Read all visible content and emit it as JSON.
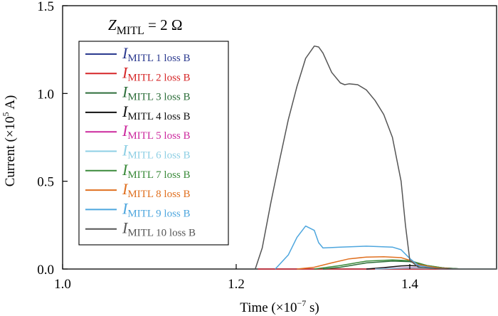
{
  "chart_data": {
    "type": "line",
    "annotation": {
      "var": "Z",
      "sub": "MITL",
      "rest": " = 2 Ω"
    },
    "xlabel": {
      "text": "Time (×10",
      "sup": "−7",
      "tail": " s)"
    },
    "ylabel": {
      "text": "Current (×10",
      "sup": "5",
      "tail": " A)"
    },
    "xlim": [
      1.0,
      1.5
    ],
    "ylim": [
      0.0,
      1.5
    ],
    "xticks": [
      {
        "value": 1.0,
        "label": "1.0"
      },
      {
        "value": 1.2,
        "label": "1.2"
      },
      {
        "value": 1.4,
        "label": "1.4"
      }
    ],
    "yticks": [
      {
        "value": 0.0,
        "label": "0.0"
      },
      {
        "value": 0.5,
        "label": "0.5"
      },
      {
        "value": 1.0,
        "label": "1.0"
      },
      {
        "value": 1.5,
        "label": "1.5"
      }
    ],
    "grid": false,
    "legend_position": "upper-left",
    "series": [
      {
        "name_var": "I",
        "name_sub": "MITL 1 loss B",
        "color": "#2b3a8f",
        "x": [
          1.225,
          1.3,
          1.36,
          1.4,
          1.44,
          1.5
        ],
        "y": [
          0,
          0,
          0,
          0,
          0,
          0
        ]
      },
      {
        "name_var": "I",
        "name_sub": "MITL 2 loss B",
        "color": "#d62728",
        "x": [
          1.225,
          1.3,
          1.36,
          1.4,
          1.44,
          1.5
        ],
        "y": [
          0,
          0,
          0,
          0,
          0,
          0
        ]
      },
      {
        "name_var": "I",
        "name_sub": "MITL 3 loss B",
        "color": "#2d6e3a",
        "x": [
          1.3,
          1.32,
          1.35,
          1.38,
          1.4,
          1.42,
          1.44,
          1.46,
          1.5
        ],
        "y": [
          0,
          0.01,
          0.035,
          0.045,
          0.042,
          0.02,
          0.005,
          0,
          0
        ]
      },
      {
        "name_var": "I",
        "name_sub": "MITL 4 loss B",
        "color": "#111111",
        "x": [
          1.35,
          1.37,
          1.39,
          1.4,
          1.42,
          1.44,
          1.46,
          1.5
        ],
        "y": [
          0,
          0.008,
          0.018,
          0.02,
          0.015,
          0.006,
          0,
          0
        ]
      },
      {
        "name_var": "I",
        "name_sub": "MITL 5 loss B",
        "color": "#cc2a9e",
        "x": [
          1.36,
          1.38,
          1.4,
          1.42,
          1.45,
          1.5
        ],
        "y": [
          0,
          0.004,
          0.008,
          0.006,
          0.001,
          0
        ]
      },
      {
        "name_var": "I",
        "name_sub": "MITL 6 loss B",
        "color": "#8ecfe4",
        "x": [
          1.36,
          1.38,
          1.4,
          1.42,
          1.45,
          1.5
        ],
        "y": [
          0,
          0.003,
          0.006,
          0.004,
          0.001,
          0
        ]
      },
      {
        "name_var": "I",
        "name_sub": "MITL 7 loss B",
        "color": "#3a8a3a",
        "x": [
          1.29,
          1.32,
          1.35,
          1.38,
          1.4,
          1.42,
          1.44,
          1.46,
          1.5
        ],
        "y": [
          0,
          0.02,
          0.045,
          0.052,
          0.048,
          0.02,
          0.005,
          0,
          0
        ]
      },
      {
        "name_var": "I",
        "name_sub": "MITL 8 loss B",
        "color": "#e07020",
        "x": [
          1.27,
          1.29,
          1.31,
          1.33,
          1.35,
          1.37,
          1.39,
          1.4,
          1.41,
          1.43,
          1.45,
          1.5
        ],
        "y": [
          0,
          0.01,
          0.035,
          0.058,
          0.068,
          0.07,
          0.065,
          0.05,
          0.025,
          0.008,
          0,
          0
        ]
      },
      {
        "name_var": "I",
        "name_sub": "MITL 9 loss B",
        "color": "#4da6de",
        "x": [
          1.245,
          1.26,
          1.27,
          1.28,
          1.29,
          1.295,
          1.3,
          1.32,
          1.35,
          1.38,
          1.39,
          1.4,
          1.41,
          1.43,
          1.45,
          1.5
        ],
        "y": [
          0,
          0.08,
          0.18,
          0.245,
          0.22,
          0.15,
          0.12,
          0.125,
          0.13,
          0.125,
          0.11,
          0.06,
          0.02,
          0.003,
          0,
          0
        ]
      },
      {
        "name_var": "I",
        "name_sub": "MITL 10 loss B",
        "color": "#555555",
        "x": [
          1.222,
          1.23,
          1.24,
          1.25,
          1.26,
          1.27,
          1.28,
          1.29,
          1.295,
          1.3,
          1.31,
          1.32,
          1.325,
          1.33,
          1.34,
          1.35,
          1.36,
          1.37,
          1.38,
          1.39,
          1.395,
          1.4,
          1.41,
          1.43,
          1.45,
          1.5
        ],
        "y": [
          0,
          0.12,
          0.38,
          0.62,
          0.85,
          1.04,
          1.2,
          1.27,
          1.265,
          1.23,
          1.12,
          1.06,
          1.05,
          1.055,
          1.05,
          1.02,
          0.96,
          0.88,
          0.75,
          0.5,
          0.25,
          0.05,
          0.01,
          0.003,
          0,
          0
        ]
      }
    ]
  }
}
